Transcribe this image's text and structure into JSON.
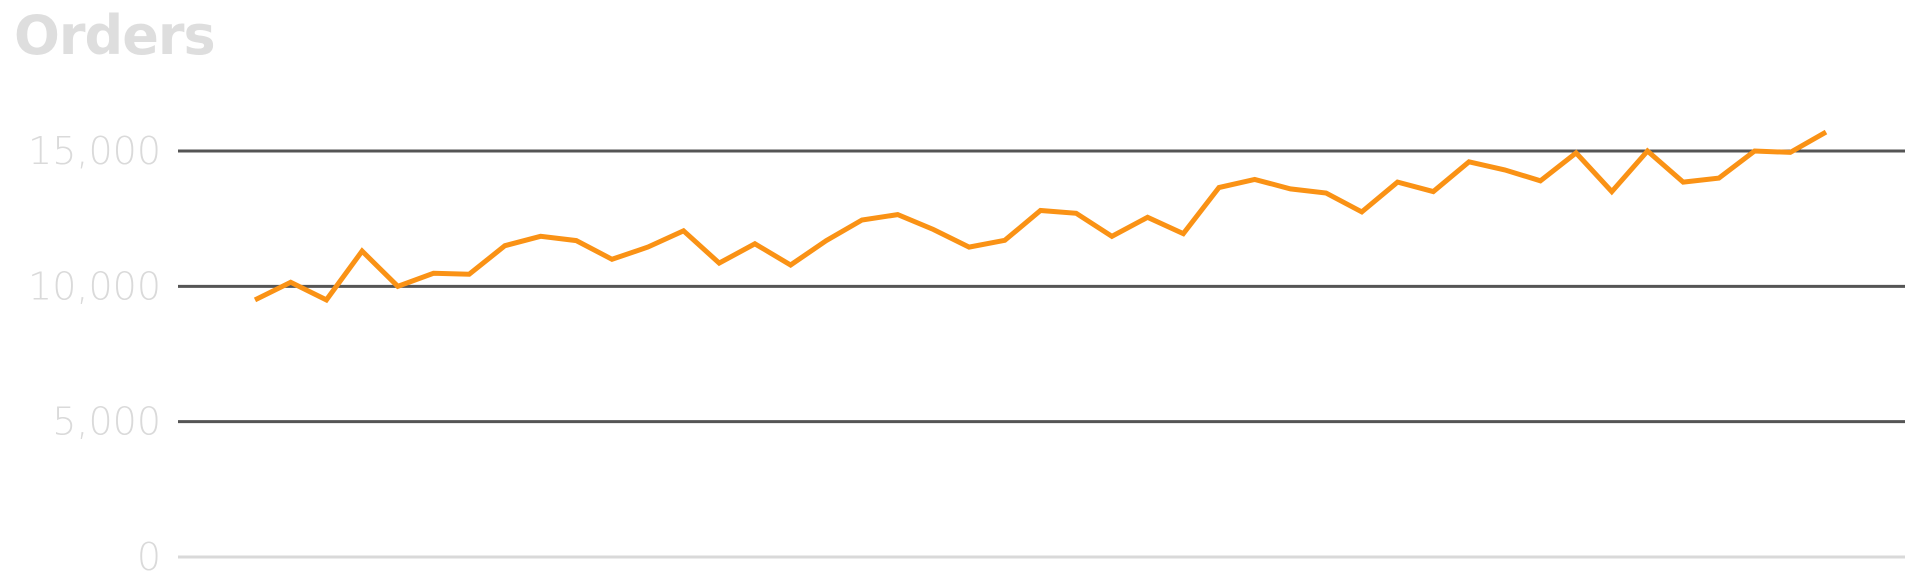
{
  "title": "Orders",
  "chart_data": {
    "type": "line",
    "title": "Orders",
    "xlabel": "",
    "ylabel": "",
    "ylim": [
      0,
      16000
    ],
    "yticks": [
      {
        "value": 0,
        "label": "0"
      },
      {
        "value": 5000,
        "label": "5,000"
      },
      {
        "value": 10000,
        "label": "10,000"
      },
      {
        "value": 15000,
        "label": "15,000"
      }
    ],
    "grid": true,
    "legend": "none",
    "line_color": "#fa9215",
    "grid_color": "#555555",
    "baseline_color": "#d9d9d9",
    "x": [
      1,
      2,
      3,
      4,
      5,
      6,
      7,
      8,
      9,
      10,
      11,
      12,
      13,
      14,
      15,
      16,
      17,
      18,
      19,
      20,
      21,
      22,
      23,
      24,
      25,
      26,
      27,
      28,
      29,
      30,
      31,
      32,
      33,
      34,
      35,
      36,
      37,
      38,
      39,
      40,
      41,
      42,
      43,
      44,
      45,
      46
    ],
    "series": [
      {
        "values": [
          9500,
          10150,
          9500,
          11300,
          10000,
          10480,
          10450,
          11500,
          11850,
          11690,
          11000,
          11450,
          12050,
          10860,
          11570,
          10790,
          11690,
          12450,
          12650,
          12100,
          11450,
          11700,
          12800,
          12700,
          11850,
          12550,
          11950,
          13650,
          13950,
          13600,
          13450,
          12750,
          13850,
          13500,
          14600,
          14300,
          13900,
          14930,
          13500,
          15000,
          13850,
          14000,
          15000,
          14950,
          15700,
          null
        ]
      }
    ]
  }
}
